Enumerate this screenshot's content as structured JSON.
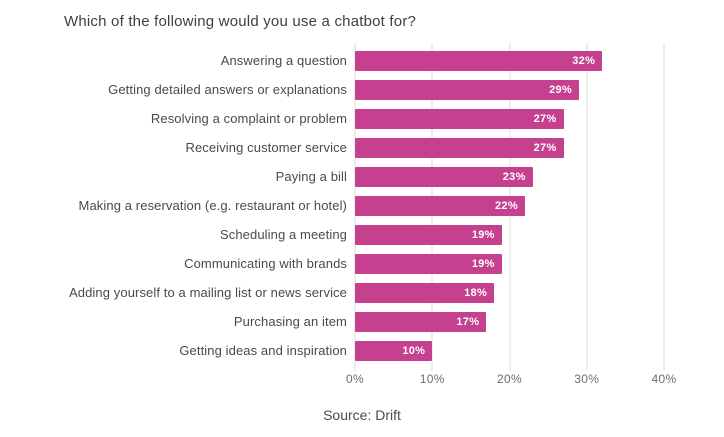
{
  "title": "Which of the following would you use a chatbot for?",
  "source": "Source: Drift",
  "chart_data": {
    "type": "bar",
    "orientation": "horizontal",
    "title": "Which of the following would you use a chatbot for?",
    "categories": [
      "Answering a question",
      "Getting detailed answers or explanations",
      "Resolving a complaint or problem",
      "Receiving customer service",
      "Paying a bill",
      "Making a reservation (e.g. restaurant or hotel)",
      "Scheduling a meeting",
      "Communicating with brands",
      "Adding yourself to a mailing list or news service",
      "Purchasing an item",
      "Getting ideas and inspiration"
    ],
    "values": [
      32,
      29,
      27,
      27,
      23,
      22,
      19,
      19,
      18,
      17,
      10
    ],
    "value_suffix": "%",
    "xlabel": "",
    "ylabel": "",
    "xlim": [
      0,
      40
    ],
    "tick_values": [
      0,
      10,
      20,
      30,
      40
    ],
    "x_ticks": [
      "0%",
      "10%",
      "20%",
      "30%",
      "40%"
    ],
    "grid": "vertical",
    "legend": "none",
    "bar_color": "#c5408f",
    "value_label_color": "#ffffff",
    "annotation": "Source: Drift"
  }
}
